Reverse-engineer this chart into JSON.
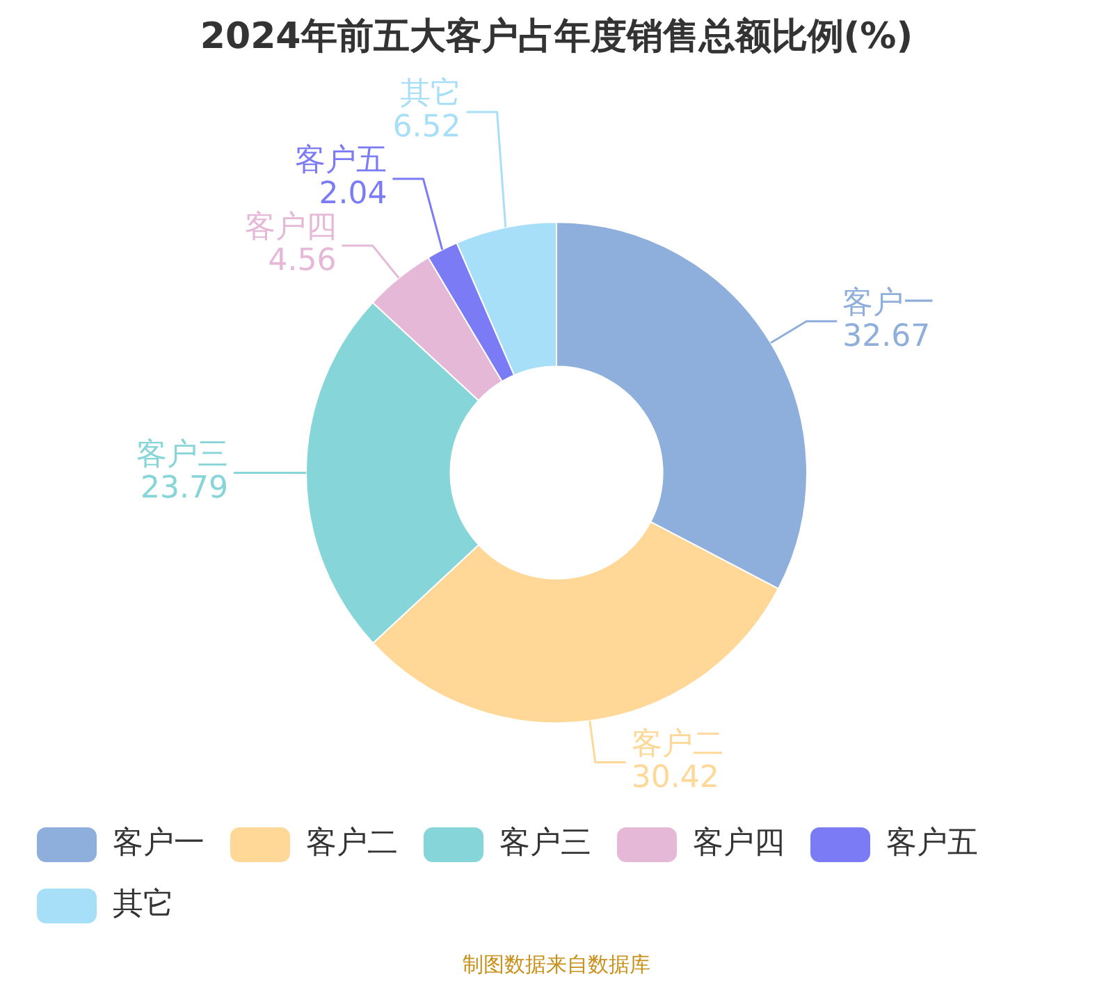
{
  "chart_data": {
    "type": "donut",
    "title": "2024年前五大客户占年度销售总额比例(%)",
    "categories": [
      "客户一",
      "客户二",
      "客户三",
      "客户四",
      "客户五",
      "其它"
    ],
    "values": [
      32.67,
      30.42,
      23.79,
      4.56,
      2.04,
      6.52
    ],
    "colors": [
      "#8eaedb",
      "#ffd898",
      "#86d5d8",
      "#e6b8d8",
      "#7b7bf5",
      "#a8dff8"
    ],
    "data_labels": true,
    "legend": "bottom",
    "annotations": [
      "制图数据来自数据库"
    ]
  }
}
